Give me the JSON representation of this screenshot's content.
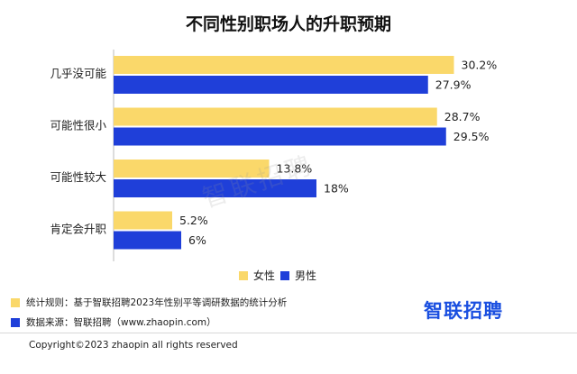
{
  "chart_data": {
    "type": "bar",
    "orientation": "horizontal",
    "title": "不同性别职场人的升职预期",
    "categories": [
      "几乎没可能",
      "可能性很小",
      "可能性较大",
      "肯定会升职"
    ],
    "series": [
      {
        "name": "女性",
        "color": "#FAD86A",
        "values": [
          30.2,
          28.7,
          13.8,
          5.2
        ],
        "labels": [
          "30.2%",
          "28.7%",
          "13.8%",
          "5.2%"
        ]
      },
      {
        "name": "男性",
        "color": "#1F3FD9",
        "values": [
          27.9,
          29.5,
          18,
          6
        ],
        "labels": [
          "27.9%",
          "29.5%",
          "18%",
          "6%"
        ]
      }
    ],
    "xlim": [
      0,
      32
    ],
    "legend_position": "bottom",
    "grid": false
  },
  "notes": [
    {
      "color": "#FAD86A",
      "text": "统计规则：基于智联招聘2023年性别平等调研数据的统计分析"
    },
    {
      "color": "#1F3FD9",
      "text": "数据来源：智联招聘（www.zhaopin.com）"
    }
  ],
  "logo_text": "智联招聘",
  "watermark": "智联招聘",
  "copyright": "Copyright©2023 zhaopin all rights reserved"
}
